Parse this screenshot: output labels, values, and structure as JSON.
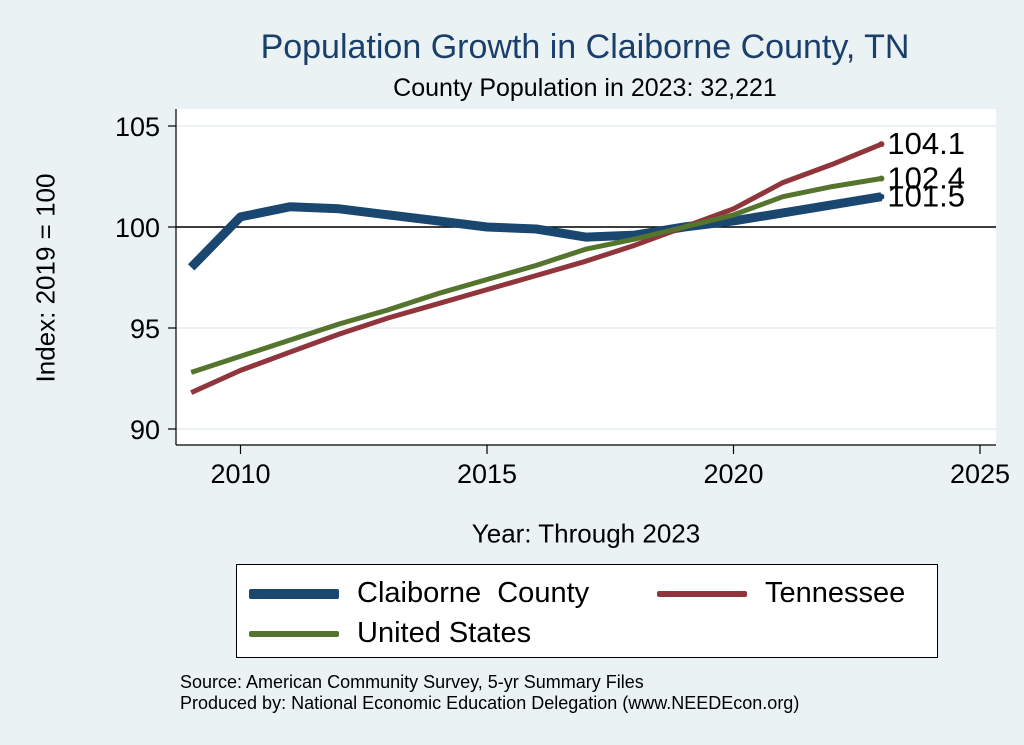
{
  "chart_data": {
    "type": "line",
    "title": "Population Growth in Claiborne County, TN",
    "subtitle": "County Population in 2023: 32,221",
    "xlabel": "Year: Through 2023",
    "ylabel": "Index: 2019 = 100",
    "xlim": [
      2009,
      2025
    ],
    "ylim": [
      90,
      105
    ],
    "x_ticks": [
      "2010",
      "2015",
      "2020",
      "2025"
    ],
    "y_ticks": [
      "105",
      "100",
      "95",
      "90"
    ],
    "reference_line": 100,
    "x": [
      2009,
      2010,
      2011,
      2012,
      2013,
      2014,
      2015,
      2016,
      2017,
      2018,
      2019,
      2020,
      2021,
      2022,
      2023
    ],
    "series": [
      {
        "name": "Claiborne  County",
        "color": "#1a476f",
        "values": [
          98.0,
          100.5,
          101.0,
          100.9,
          100.6,
          100.3,
          100.0,
          99.9,
          99.5,
          99.6,
          100.0,
          100.3,
          100.7,
          101.1,
          101.5
        ],
        "end_label": "101.5"
      },
      {
        "name": "Tennessee",
        "color": "#90353b",
        "values": [
          91.8,
          92.9,
          93.8,
          94.7,
          95.5,
          96.2,
          96.9,
          97.6,
          98.3,
          99.1,
          100.0,
          100.9,
          102.2,
          103.1,
          104.1
        ],
        "end_label": "104.1"
      },
      {
        "name": "United States",
        "color": "#55752f",
        "values": [
          92.8,
          93.6,
          94.4,
          95.2,
          95.9,
          96.7,
          97.4,
          98.1,
          98.9,
          99.4,
          100.0,
          100.6,
          101.5,
          102.0,
          102.4
        ],
        "end_label": "102.4"
      }
    ]
  },
  "legend": {
    "items": [
      {
        "label": "Claiborne  County",
        "color": "#1a476f"
      },
      {
        "label": "Tennessee",
        "color": "#90353b"
      },
      {
        "label": "United States",
        "color": "#55752f"
      }
    ]
  },
  "source": {
    "line1": "Source: American Community Survey, 5-yr Summary Files",
    "line2": "Produced by: National Economic Education Delegation (www.NEEDEcon.org)"
  }
}
